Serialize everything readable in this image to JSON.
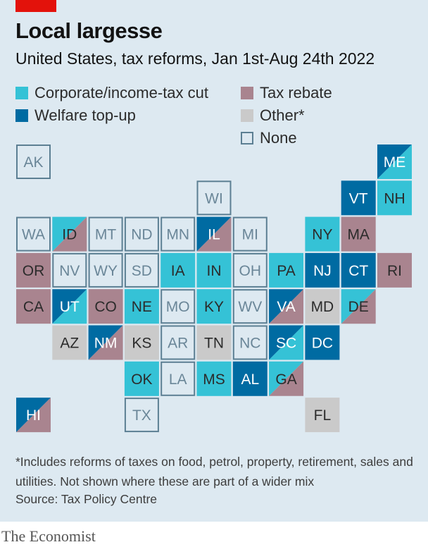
{
  "header": {
    "title": "Local largesse",
    "subtitle": "United States, tax reforms, Jan 1st-Aug 24th 2022"
  },
  "colors": {
    "corporate_income_tax_cut": "#35c2d6",
    "welfare_top_up": "#006ba2",
    "tax_rebate": "#a9848f",
    "other": "#cacaca",
    "none_border": "#5c7f93",
    "none_fill": "#dde9f1"
  },
  "legend": [
    {
      "key": "corporate_income_tax_cut",
      "label": "Corporate/income-tax cut"
    },
    {
      "key": "tax_rebate",
      "label": "Tax rebate"
    },
    {
      "key": "welfare_top_up",
      "label": "Welfare top-up"
    },
    {
      "key": "other",
      "label": "Other*"
    },
    {
      "key": "none",
      "label": "None"
    }
  ],
  "chart_data": {
    "type": "table",
    "title": "Local largesse",
    "subtitle": "United States, tax reforms, Jan 1st-Aug 24th 2022",
    "categories": [
      "Corporate/income-tax cut",
      "Welfare top-up",
      "Tax rebate",
      "Other*",
      "None"
    ],
    "states": [
      {
        "abbr": "AK",
        "row": 0,
        "col": 0,
        "categories": [
          "None"
        ]
      },
      {
        "abbr": "ME",
        "row": 0,
        "col": 10,
        "categories": [
          "Welfare top-up",
          "Corporate/income-tax cut"
        ]
      },
      {
        "abbr": "WI",
        "row": 1,
        "col": 5,
        "categories": [
          "None"
        ]
      },
      {
        "abbr": "VT",
        "row": 1,
        "col": 9,
        "categories": [
          "Welfare top-up"
        ]
      },
      {
        "abbr": "NH",
        "row": 1,
        "col": 10,
        "categories": [
          "Corporate/income-tax cut"
        ]
      },
      {
        "abbr": "WA",
        "row": 2,
        "col": 0,
        "categories": [
          "None"
        ]
      },
      {
        "abbr": "ID",
        "row": 2,
        "col": 1,
        "categories": [
          "Corporate/income-tax cut",
          "Tax rebate"
        ]
      },
      {
        "abbr": "MT",
        "row": 2,
        "col": 2,
        "categories": [
          "None"
        ]
      },
      {
        "abbr": "ND",
        "row": 2,
        "col": 3,
        "categories": [
          "None"
        ]
      },
      {
        "abbr": "MN",
        "row": 2,
        "col": 4,
        "categories": [
          "None"
        ]
      },
      {
        "abbr": "IL",
        "row": 2,
        "col": 5,
        "categories": [
          "Welfare top-up",
          "Tax rebate"
        ]
      },
      {
        "abbr": "MI",
        "row": 2,
        "col": 6,
        "categories": [
          "None"
        ]
      },
      {
        "abbr": "NY",
        "row": 2,
        "col": 8,
        "categories": [
          "Corporate/income-tax cut"
        ]
      },
      {
        "abbr": "MA",
        "row": 2,
        "col": 9,
        "categories": [
          "Tax rebate"
        ]
      },
      {
        "abbr": "OR",
        "row": 3,
        "col": 0,
        "categories": [
          "Tax rebate"
        ]
      },
      {
        "abbr": "NV",
        "row": 3,
        "col": 1,
        "categories": [
          "None"
        ]
      },
      {
        "abbr": "WY",
        "row": 3,
        "col": 2,
        "categories": [
          "None"
        ]
      },
      {
        "abbr": "SD",
        "row": 3,
        "col": 3,
        "categories": [
          "None"
        ]
      },
      {
        "abbr": "IA",
        "row": 3,
        "col": 4,
        "categories": [
          "Corporate/income-tax cut"
        ]
      },
      {
        "abbr": "IN",
        "row": 3,
        "col": 5,
        "categories": [
          "Corporate/income-tax cut"
        ]
      },
      {
        "abbr": "OH",
        "row": 3,
        "col": 6,
        "categories": [
          "None"
        ]
      },
      {
        "abbr": "PA",
        "row": 3,
        "col": 7,
        "categories": [
          "Corporate/income-tax cut"
        ]
      },
      {
        "abbr": "NJ",
        "row": 3,
        "col": 8,
        "categories": [
          "Welfare top-up"
        ]
      },
      {
        "abbr": "CT",
        "row": 3,
        "col": 9,
        "categories": [
          "Welfare top-up"
        ]
      },
      {
        "abbr": "RI",
        "row": 3,
        "col": 10,
        "categories": [
          "Tax rebate"
        ]
      },
      {
        "abbr": "CA",
        "row": 4,
        "col": 0,
        "categories": [
          "Tax rebate"
        ]
      },
      {
        "abbr": "UT",
        "row": 4,
        "col": 1,
        "categories": [
          "Welfare top-up",
          "Corporate/income-tax cut"
        ]
      },
      {
        "abbr": "CO",
        "row": 4,
        "col": 2,
        "categories": [
          "Tax rebate"
        ]
      },
      {
        "abbr": "NE",
        "row": 4,
        "col": 3,
        "categories": [
          "Corporate/income-tax cut"
        ]
      },
      {
        "abbr": "MO",
        "row": 4,
        "col": 4,
        "categories": [
          "None"
        ]
      },
      {
        "abbr": "KY",
        "row": 4,
        "col": 5,
        "categories": [
          "Corporate/income-tax cut"
        ]
      },
      {
        "abbr": "WV",
        "row": 4,
        "col": 6,
        "categories": [
          "None"
        ]
      },
      {
        "abbr": "VA",
        "row": 4,
        "col": 7,
        "categories": [
          "Welfare top-up",
          "Tax rebate"
        ]
      },
      {
        "abbr": "MD",
        "row": 4,
        "col": 8,
        "categories": [
          "Other*"
        ]
      },
      {
        "abbr": "DE",
        "row": 4,
        "col": 9,
        "categories": [
          "Corporate/income-tax cut",
          "Tax rebate"
        ]
      },
      {
        "abbr": "AZ",
        "row": 5,
        "col": 1,
        "categories": [
          "Other*"
        ]
      },
      {
        "abbr": "NM",
        "row": 5,
        "col": 2,
        "categories": [
          "Welfare top-up",
          "Tax rebate"
        ]
      },
      {
        "abbr": "KS",
        "row": 5,
        "col": 3,
        "categories": [
          "Other*"
        ]
      },
      {
        "abbr": "AR",
        "row": 5,
        "col": 4,
        "categories": [
          "None"
        ]
      },
      {
        "abbr": "TN",
        "row": 5,
        "col": 5,
        "categories": [
          "Other*"
        ]
      },
      {
        "abbr": "NC",
        "row": 5,
        "col": 6,
        "categories": [
          "None"
        ]
      },
      {
        "abbr": "SC",
        "row": 5,
        "col": 7,
        "categories": [
          "Welfare top-up",
          "Corporate/income-tax cut"
        ]
      },
      {
        "abbr": "DC",
        "row": 5,
        "col": 8,
        "categories": [
          "Welfare top-up"
        ]
      },
      {
        "abbr": "OK",
        "row": 6,
        "col": 3,
        "categories": [
          "Corporate/income-tax cut"
        ]
      },
      {
        "abbr": "LA",
        "row": 6,
        "col": 4,
        "categories": [
          "None"
        ]
      },
      {
        "abbr": "MS",
        "row": 6,
        "col": 5,
        "categories": [
          "Corporate/income-tax cut"
        ]
      },
      {
        "abbr": "AL",
        "row": 6,
        "col": 6,
        "categories": [
          "Welfare top-up"
        ]
      },
      {
        "abbr": "GA",
        "row": 6,
        "col": 7,
        "categories": [
          "Corporate/income-tax cut",
          "Tax rebate"
        ]
      },
      {
        "abbr": "HI",
        "row": 7,
        "col": 0,
        "categories": [
          "Welfare top-up",
          "Tax rebate"
        ]
      },
      {
        "abbr": "TX",
        "row": 7,
        "col": 3,
        "categories": [
          "None"
        ]
      },
      {
        "abbr": "FL",
        "row": 7,
        "col": 8,
        "categories": [
          "Other*"
        ]
      }
    ]
  },
  "footnote": "*Includes reforms of taxes on food, petrol, property, retirement, sales and utilities. Not shown where these are part of a wider mix",
  "source": "Source: Tax Policy Centre",
  "brand": "The Economist"
}
